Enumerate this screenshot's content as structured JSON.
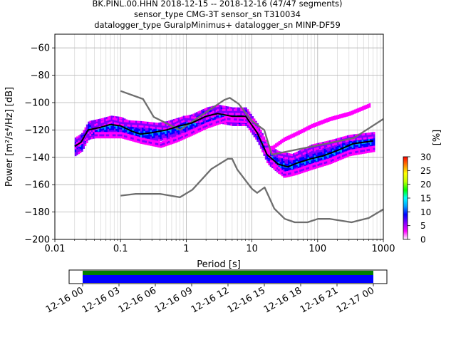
{
  "chart_data": {
    "type": "heatmap",
    "title_lines": [
      "BK.PINL.00.HHN   2018-12-15 -- 2018-12-16  (47/47 segments)",
      "sensor_type CMG-3T sensor_sn T310034",
      "datalogger_type GuralpMinimus+ datalogger_sn MINP-DF59"
    ],
    "xlabel": "Period [s]",
    "ylabel": "Power [m²/s⁴/Hz] [dB]",
    "x_scale": "log",
    "xlim": [
      0.01,
      1000
    ],
    "ylim": [
      -200,
      -50
    ],
    "x_ticks": [
      {
        "value": 0.01,
        "label": "0.01"
      },
      {
        "value": 0.1,
        "label": "0.1"
      },
      {
        "value": 1,
        "label": "1"
      },
      {
        "value": 10,
        "label": "10"
      },
      {
        "value": 100,
        "label": "100"
      },
      {
        "value": 1000,
        "label": "1000"
      }
    ],
    "y_ticks": [
      {
        "value": -60,
        "label": "−60"
      },
      {
        "value": -80,
        "label": "−80"
      },
      {
        "value": -100,
        "label": "−100"
      },
      {
        "value": -120,
        "label": "−120"
      },
      {
        "value": -140,
        "label": "−140"
      },
      {
        "value": -160,
        "label": "−160"
      },
      {
        "value": -180,
        "label": "−180"
      },
      {
        "value": -200,
        "label": "−200"
      }
    ],
    "grid": true,
    "colorbar": {
      "label": "[%]",
      "range": [
        0,
        30
      ],
      "ticks": [
        {
          "value": 0,
          "label": "0"
        },
        {
          "value": 5,
          "label": "5"
        },
        {
          "value": 10,
          "label": "10"
        },
        {
          "value": 15,
          "label": "15"
        },
        {
          "value": 20,
          "label": "20"
        },
        {
          "value": 25,
          "label": "25"
        },
        {
          "value": 30,
          "label": "30"
        }
      ],
      "colors": [
        "#ffffff",
        "#ff00ff",
        "#8000ff",
        "#0000ff",
        "#00a0ff",
        "#00ffff",
        "#00ff00",
        "#c0ff00",
        "#ffff00",
        "#ff8000",
        "#ff0000"
      ]
    },
    "series": [
      {
        "role": "new-high-noise-model",
        "color": "#6e6e6e",
        "points": [
          [
            0.1,
            -91.5
          ],
          [
            0.22,
            -97.4
          ],
          [
            0.32,
            -110.5
          ],
          [
            0.8,
            -120
          ],
          [
            3.8,
            -98
          ],
          [
            4.6,
            -96.5
          ],
          [
            6.3,
            -101
          ],
          [
            10,
            -113.5
          ],
          [
            15.4,
            -120
          ],
          [
            20,
            -138
          ],
          [
            354,
            -126
          ],
          [
            1000,
            -112
          ]
        ]
      },
      {
        "role": "new-low-noise-model",
        "color": "#6e6e6e",
        "points": [
          [
            0.1,
            -168
          ],
          [
            0.17,
            -166.7
          ],
          [
            0.4,
            -166.7
          ],
          [
            0.8,
            -169.2
          ],
          [
            1.24,
            -163.7
          ],
          [
            2.4,
            -148.6
          ],
          [
            4.3,
            -141.1
          ],
          [
            5,
            -141.1
          ],
          [
            6,
            -149
          ],
          [
            10,
            -163
          ],
          [
            12,
            -166
          ],
          [
            15.6,
            -162
          ],
          [
            21.9,
            -177.5
          ],
          [
            31.6,
            -185
          ],
          [
            45,
            -187.5
          ],
          [
            70,
            -187.5
          ],
          [
            101,
            -185
          ],
          [
            154,
            -185
          ],
          [
            328,
            -187.5
          ],
          [
            600,
            -184.4
          ],
          [
            1000,
            -178
          ]
        ]
      },
      {
        "role": "mean",
        "color": "#000000",
        "points": [
          [
            0.02,
            -132
          ],
          [
            0.025,
            -129
          ],
          [
            0.032,
            -120
          ],
          [
            0.05,
            -118
          ],
          [
            0.07,
            -116
          ],
          [
            0.1,
            -117
          ],
          [
            0.15,
            -121
          ],
          [
            0.2,
            -123
          ],
          [
            0.3,
            -122
          ],
          [
            0.5,
            -120
          ],
          [
            0.8,
            -117
          ],
          [
            1.2,
            -115
          ],
          [
            2,
            -110
          ],
          [
            3,
            -108
          ],
          [
            5,
            -110
          ],
          [
            8,
            -110
          ],
          [
            12,
            -122
          ],
          [
            17,
            -138
          ],
          [
            25,
            -145
          ],
          [
            35,
            -147
          ],
          [
            50,
            -144
          ],
          [
            80,
            -141
          ],
          [
            120,
            -139
          ],
          [
            200,
            -135
          ],
          [
            350,
            -130
          ],
          [
            700,
            -128
          ]
        ]
      }
    ],
    "psd_bands": [
      {
        "center": [
          [
            0.02,
            -132
          ],
          [
            0.025,
            -129
          ],
          [
            0.032,
            -120
          ],
          [
            0.05,
            -118
          ],
          [
            0.07,
            -116
          ],
          [
            0.1,
            -117
          ],
          [
            0.15,
            -121
          ],
          [
            0.2,
            -123
          ],
          [
            0.3,
            -122
          ],
          [
            0.5,
            -120
          ],
          [
            0.8,
            -117
          ],
          [
            1.2,
            -115
          ],
          [
            2,
            -110
          ],
          [
            3,
            -108
          ],
          [
            5,
            -110
          ],
          [
            8,
            -110
          ],
          [
            12,
            -122
          ],
          [
            17,
            -138
          ],
          [
            25,
            -145
          ],
          [
            35,
            -147
          ],
          [
            50,
            -144
          ],
          [
            80,
            -141
          ],
          [
            120,
            -139
          ],
          [
            200,
            -135
          ],
          [
            350,
            -130
          ],
          [
            700,
            -128
          ]
        ],
        "width_db": 14,
        "percent": 8
      },
      {
        "center": [
          [
            0.02,
            -132
          ],
          [
            0.03,
            -125
          ],
          [
            0.04,
            -118
          ],
          [
            0.07,
            -113
          ],
          [
            0.1,
            -115
          ],
          [
            0.2,
            -116
          ],
          [
            0.5,
            -118
          ],
          [
            0.9,
            -112
          ],
          [
            1.5,
            -113
          ],
          [
            3,
            -107
          ],
          [
            7,
            -107
          ],
          [
            12,
            -118
          ],
          [
            17,
            -133
          ],
          [
            25,
            -138
          ],
          [
            40,
            -140
          ],
          [
            80,
            -133
          ],
          [
            150,
            -130
          ],
          [
            300,
            -126
          ],
          [
            700,
            -124
          ]
        ],
        "width_db": 4,
        "percent": 4
      },
      {
        "center": [
          [
            0.04,
            -124
          ],
          [
            0.1,
            -124
          ],
          [
            0.2,
            -128
          ],
          [
            0.4,
            -131
          ],
          [
            0.7,
            -127
          ],
          [
            1.2,
            -122
          ],
          [
            2,
            -117
          ],
          [
            4,
            -112
          ],
          [
            8,
            -113
          ],
          [
            14,
            -126
          ],
          [
            20,
            -145
          ],
          [
            30,
            -153
          ],
          [
            45,
            -151
          ],
          [
            80,
            -147
          ],
          [
            150,
            -143
          ],
          [
            300,
            -137
          ],
          [
            700,
            -134
          ]
        ],
        "width_db": 4,
        "percent": 3
      },
      {
        "center": [
          [
            15,
            -136
          ],
          [
            20,
            -133
          ],
          [
            30,
            -127
          ],
          [
            50,
            -122
          ],
          [
            80,
            -117
          ],
          [
            150,
            -112
          ],
          [
            300,
            -108
          ],
          [
            600,
            -102
          ]
        ],
        "width_db": 3,
        "percent": 2
      }
    ]
  },
  "timeline": {
    "ticks": [
      {
        "pos": 0.0,
        "label": "12-16 00"
      },
      {
        "pos": 0.125,
        "label": "12-16 03"
      },
      {
        "pos": 0.25,
        "label": "12-16 06"
      },
      {
        "pos": 0.375,
        "label": "12-16 09"
      },
      {
        "pos": 0.5,
        "label": "12-16 12"
      },
      {
        "pos": 0.625,
        "label": "12-16 15"
      },
      {
        "pos": 0.75,
        "label": "12-16 18"
      },
      {
        "pos": 0.875,
        "label": "12-16 21"
      },
      {
        "pos": 1.0,
        "label": "12-17 00"
      }
    ],
    "coverage_colors": {
      "data": "#0000ff",
      "processed": "#008000"
    }
  }
}
